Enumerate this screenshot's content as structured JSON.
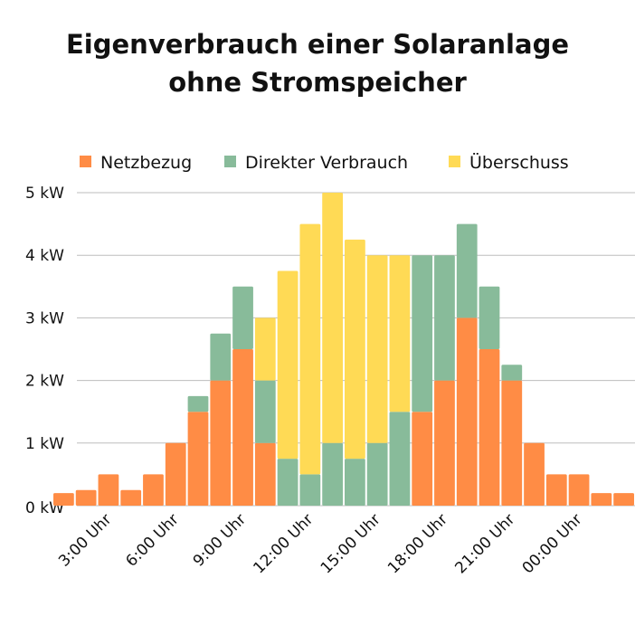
{
  "chart_data": {
    "type": "bar",
    "stacked": true,
    "title_lines": [
      "Eigenverbrauch einer Solaranlage",
      "ohne Stromspeicher"
    ],
    "xlabel": "",
    "ylabel": "",
    "ylim": [
      0,
      5
    ],
    "y_ticks": [
      0,
      1,
      2,
      3,
      4,
      5
    ],
    "y_tick_labels": [
      "0 kW",
      "1 kW",
      "2 kW",
      "3 kW",
      "4 kW",
      "5 kW"
    ],
    "grid": true,
    "legend_position": "top",
    "bar_count": 26,
    "x_tick_bars": [
      3,
      6,
      9,
      12,
      15,
      18,
      21,
      24
    ],
    "x_tick_labels": [
      "3:00 Uhr",
      "6:00 Uhr",
      "9:00 Uhr",
      "12:00 Uhr",
      "15:00 Uhr",
      "18:00 Uhr",
      "21:00 Uhr",
      "00:00 Uhr"
    ],
    "series": [
      {
        "name": "Netzbezug",
        "color": "#FF8C45",
        "values": [
          0.2,
          0.25,
          0.5,
          0.25,
          0.5,
          1,
          1.5,
          2,
          2.5,
          1,
          0,
          0,
          0,
          0,
          0,
          0,
          1.5,
          2,
          3,
          2.5,
          2,
          1,
          0.5,
          0.5,
          0.2,
          0.2
        ]
      },
      {
        "name": "Direkter Verbrauch",
        "color": "#88BB9A",
        "values": [
          0,
          0,
          0,
          0,
          0,
          0,
          0.25,
          0.75,
          1,
          1,
          0.75,
          0.5,
          1,
          0.75,
          1,
          1.5,
          2.5,
          2,
          1.5,
          1,
          0.25,
          0,
          0,
          0,
          0,
          0
        ]
      },
      {
        "name": "Überschuss",
        "color": "#FFDA55",
        "values": [
          0,
          0,
          0,
          0,
          0,
          0,
          0,
          0,
          0,
          1,
          3,
          4,
          4,
          3.5,
          3,
          2.5,
          0,
          0,
          0,
          0,
          0,
          0,
          0,
          0,
          0,
          0
        ]
      }
    ]
  }
}
